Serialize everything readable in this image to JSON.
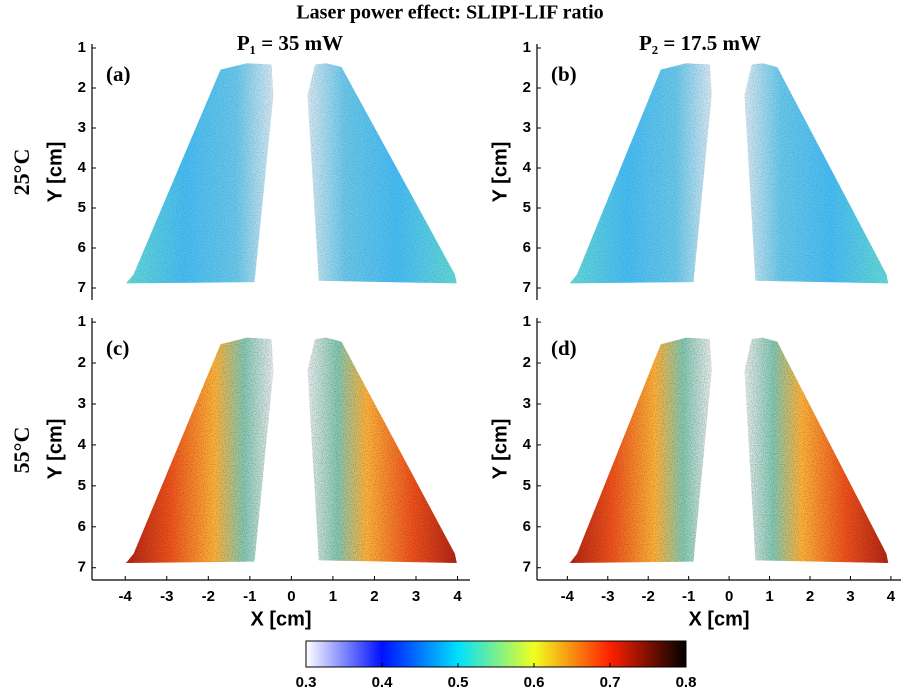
{
  "title": "Laser power effect: SLIPI-LIF ratio",
  "column_titles": [
    "P₁ = 35 mW",
    "P₂ = 17.5 mW"
  ],
  "row_labels": [
    "25°C",
    "55°C"
  ],
  "chart_data": [
    {
      "type": "heatmap",
      "panel_label": "(a)",
      "ylabel": "Y [cm]",
      "ylim": [
        0.9,
        7.3
      ],
      "yticks": [
        1,
        2,
        3,
        4,
        5,
        6,
        7
      ],
      "y_inverted": true,
      "xlim": [
        -4.8,
        4.3
      ],
      "palette": "cool"
    },
    {
      "type": "heatmap",
      "panel_label": "(b)",
      "ylabel": "Y [cm]",
      "ylim": [
        0.9,
        7.3
      ],
      "yticks": [
        1,
        2,
        3,
        4,
        5,
        6,
        7
      ],
      "y_inverted": true,
      "xlim": [
        -4.75,
        4.25
      ],
      "palette": "cool"
    },
    {
      "type": "heatmap",
      "panel_label": "(c)",
      "ylabel": "Y [cm]",
      "xlabel": "X [cm]",
      "ylim": [
        0.9,
        7.3
      ],
      "yticks": [
        1,
        2,
        3,
        4,
        5,
        6,
        7
      ],
      "y_inverted": true,
      "xlim": [
        -4.8,
        4.3
      ],
      "xticks": [
        -4,
        -3,
        -2,
        -1,
        0,
        1,
        2,
        3,
        4
      ],
      "palette": "warm"
    },
    {
      "type": "heatmap",
      "panel_label": "(d)",
      "ylabel": "Y [cm]",
      "xlabel": "X [cm]",
      "ylim": [
        0.9,
        7.3
      ],
      "yticks": [
        1,
        2,
        3,
        4,
        5,
        6,
        7
      ],
      "y_inverted": true,
      "xlim": [
        -4.75,
        4.25
      ],
      "xticks": [
        -4,
        -3,
        -2,
        -1,
        0,
        1,
        2,
        3,
        4
      ],
      "palette": "warm"
    }
  ],
  "colorbar": {
    "lim": [
      0.3,
      0.8
    ],
    "ticks": [
      0.3,
      0.4,
      0.5,
      0.6,
      0.7,
      0.8
    ],
    "colors": [
      "#ffffff",
      "#0010ff",
      "#00e0ff",
      "#f0ff20",
      "#ff2000",
      "#000000"
    ]
  }
}
